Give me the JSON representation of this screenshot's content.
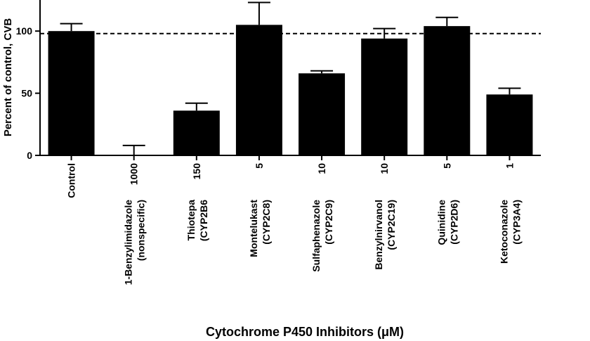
{
  "chart_data": {
    "type": "bar",
    "title": "",
    "xlabel": "Cytochrome P450 Inhibitors (μM)",
    "ylabel": "Percent of control, CVB",
    "ylim": [
      0,
      125
    ],
    "yticks": [
      0,
      50,
      100
    ],
    "reference_line": 98,
    "categories": [
      {
        "dose": "",
        "name": "Control",
        "target": ""
      },
      {
        "dose": "1000",
        "name": "1-Benzylimidazole",
        "target": "(nonspecific)"
      },
      {
        "dose": "150",
        "name": "Thiotepa",
        "target": "(CYP2B6"
      },
      {
        "dose": "5",
        "name": "Montelukast",
        "target": "(CYP2C8)"
      },
      {
        "dose": "10",
        "name": "Sulfaphenazole",
        "target": "(CYP2C9)"
      },
      {
        "dose": "10",
        "name": "Benzylnirvanol",
        "target": "(CYP2C19)"
      },
      {
        "dose": "5",
        "name": "Quinidine",
        "target": "(CYP2D6)"
      },
      {
        "dose": "1",
        "name": "Ketoconazole",
        "target": "(CYP3A4)"
      }
    ],
    "values": [
      100,
      0,
      36,
      105,
      66,
      94,
      104,
      49
    ],
    "errors": [
      6,
      8,
      6,
      18,
      2,
      8,
      7,
      5
    ],
    "bar_color": "#000000"
  }
}
